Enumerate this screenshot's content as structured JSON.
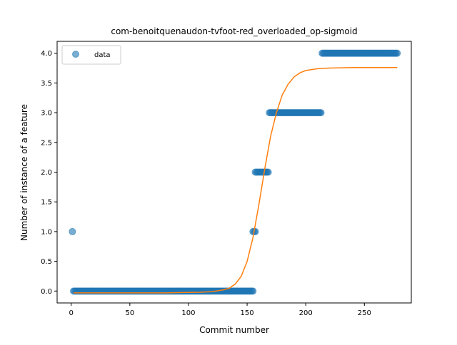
{
  "chart_data": {
    "type": "scatter",
    "title": "com-benoitquenaudon-tvfoot-red_overloaded_op-sigmoid",
    "xlabel": "Commit number",
    "ylabel": "Number of instance of a feature",
    "xlim": [
      -12,
      290
    ],
    "ylim": [
      -0.2,
      4.2
    ],
    "xticks": [
      0,
      50,
      100,
      150,
      200,
      250
    ],
    "yticks": [
      0.0,
      0.5,
      1.0,
      1.5,
      2.0,
      2.5,
      3.0,
      3.5,
      4.0
    ],
    "ytick_labels": [
      "0.0",
      "0.5",
      "1.0",
      "1.5",
      "2.0",
      "2.5",
      "3.0",
      "3.5",
      "4.0"
    ],
    "grid": false,
    "legend": {
      "position": "top-left",
      "entries": [
        "data"
      ]
    },
    "series": [
      {
        "name": "data",
        "type": "scatter",
        "color": "#1f77b4",
        "segments": [
          {
            "x_start": 1,
            "x_end": 1,
            "y": 1.0
          },
          {
            "x_start": 2,
            "x_end": 155,
            "y": 0.0
          },
          {
            "x_start": 155,
            "x_end": 157,
            "y": 1.0
          },
          {
            "x_start": 157,
            "x_end": 168,
            "y": 2.0
          },
          {
            "x_start": 169,
            "x_end": 213,
            "y": 3.0
          },
          {
            "x_start": 214,
            "x_end": 278,
            "y": 4.0
          }
        ]
      },
      {
        "type": "line",
        "color": "#ff7f0e",
        "x": [
          2,
          40,
          80,
          110,
          120,
          130,
          135,
          140,
          145,
          150,
          155,
          160,
          165,
          170,
          175,
          180,
          185,
          190,
          195,
          200,
          210,
          220,
          240,
          260,
          278
        ],
        "y": [
          -0.03,
          -0.03,
          -0.03,
          -0.02,
          -0.01,
          0.02,
          0.05,
          0.12,
          0.25,
          0.5,
          0.9,
          1.45,
          2.05,
          2.6,
          3.0,
          3.3,
          3.48,
          3.6,
          3.67,
          3.71,
          3.74,
          3.75,
          3.76,
          3.76,
          3.76
        ]
      }
    ]
  }
}
